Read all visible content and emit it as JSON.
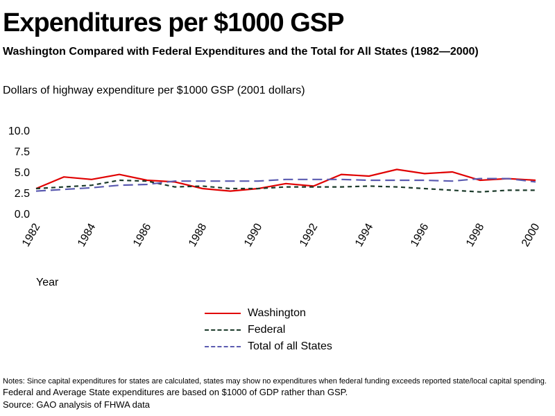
{
  "header": {
    "title": "Expenditures per $1000 GSP",
    "subtitle": "Washington Compared with Federal Expenditures and the Total for All States (1982—2000)"
  },
  "chart_data": {
    "type": "line",
    "ylabel": "Dollars of highway expenditure per $1000 GSP (2001 dollars)",
    "xlabel": "Year",
    "ylim": [
      0,
      10
    ],
    "yticks": [
      "10.0",
      "7.5",
      "5.0",
      "2.5",
      "0.0"
    ],
    "xlim": [
      1982,
      2000
    ],
    "xticks": [
      "1982",
      "1984",
      "1986",
      "1988",
      "1990",
      "1992",
      "1994",
      "1996",
      "1998",
      "2000"
    ],
    "grid": false,
    "legend_position": "bottom-center",
    "x": [
      1982,
      1983,
      1984,
      1985,
      1986,
      1987,
      1988,
      1989,
      1990,
      1991,
      1992,
      1993,
      1994,
      1995,
      1996,
      1997,
      1998,
      1999,
      2000
    ],
    "series": [
      {
        "name": "Washington",
        "color": "#e00000",
        "dash": "solid",
        "values": [
          3.0,
          4.4,
          4.1,
          4.7,
          4.0,
          3.8,
          3.0,
          2.7,
          3.0,
          3.6,
          3.3,
          4.7,
          4.5,
          5.3,
          4.8,
          5.0,
          4.0,
          4.2,
          4.0
        ]
      },
      {
        "name": "Federal",
        "color": "#1b3a2a",
        "dash": "short",
        "values": [
          3.0,
          3.2,
          3.4,
          4.0,
          3.9,
          3.2,
          3.3,
          3.0,
          3.0,
          3.2,
          3.2,
          3.2,
          3.3,
          3.2,
          3.0,
          2.8,
          2.6,
          2.8,
          2.8
        ]
      },
      {
        "name": "Total of all States",
        "color": "#5a5ab0",
        "dash": "long",
        "values": [
          2.7,
          2.9,
          3.1,
          3.4,
          3.5,
          3.9,
          3.9,
          3.9,
          3.9,
          4.1,
          4.1,
          4.1,
          4.0,
          4.0,
          4.0,
          3.9,
          4.2,
          4.2,
          3.8
        ]
      }
    ]
  },
  "notes": [
    "Notes: Since capital expenditures for states are calculated, states may show no expenditures when federal funding exceeds reported state/local capital spending.",
    "Federal and Average State expenditures are based on $1000 of GDP rather than GSP.",
    "Source: GAO analysis of FHWA data"
  ]
}
